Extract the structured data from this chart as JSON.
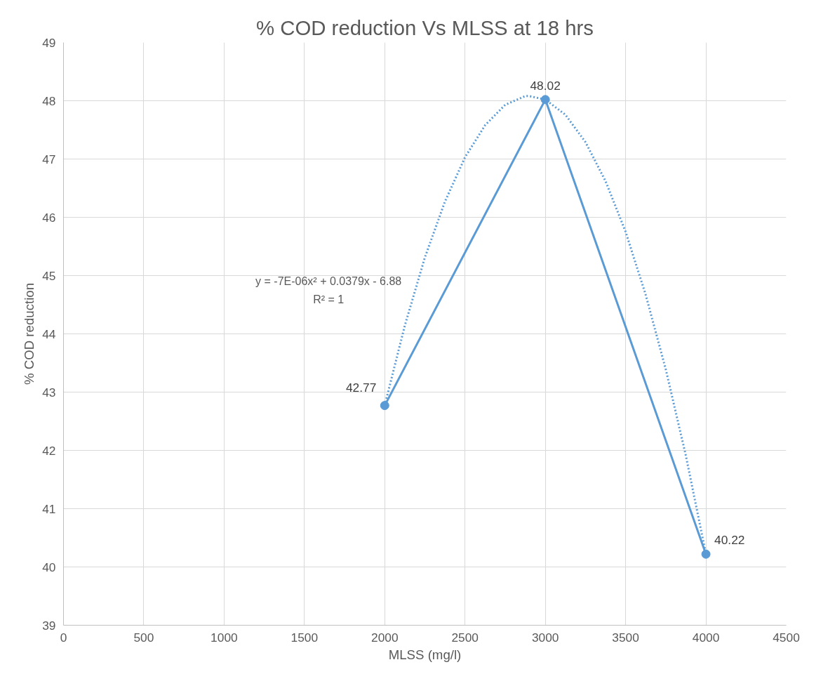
{
  "chart_data": {
    "type": "line",
    "title": "% COD reduction Vs MLSS at 18 hrs",
    "xlabel": "MLSS (mg/l)",
    "ylabel": "% COD reduction",
    "x": [
      2000,
      3000,
      4000
    ],
    "series": [
      {
        "type": "line",
        "color": "#5b9bd5",
        "values": [
          42.77,
          48.02,
          40.22
        ],
        "marker": "circle",
        "line_style": "solid"
      },
      {
        "type": "line",
        "color": "#5b9bd5",
        "x": [
          2000,
          2125,
          2250,
          2375,
          2500,
          2625,
          2750,
          2875,
          2900,
          3000,
          3125,
          3250,
          3375,
          3500,
          3625,
          3750,
          3875,
          4000
        ],
        "values": [
          42.77,
          44.14,
          45.31,
          46.27,
          47.03,
          47.58,
          47.93,
          48.08,
          48.08,
          48.02,
          47.76,
          47.29,
          46.62,
          45.75,
          44.67,
          43.39,
          41.91,
          40.22
        ],
        "marker": "none",
        "line_style": "dotted",
        "data_labels": false
      }
    ],
    "annotations": [
      "y = -7E-06x² + 0.0379x - 6.88",
      "R² = 1"
    ],
    "data_labels": true,
    "grid": true,
    "xlim": [
      0,
      4500
    ],
    "xticks": [
      0,
      500,
      1000,
      1500,
      2000,
      2500,
      3000,
      3500,
      4000,
      4500
    ],
    "ylim": [
      39,
      49
    ],
    "yticks": [
      39,
      40,
      41,
      42,
      43,
      44,
      45,
      46,
      47,
      48,
      49
    ]
  }
}
